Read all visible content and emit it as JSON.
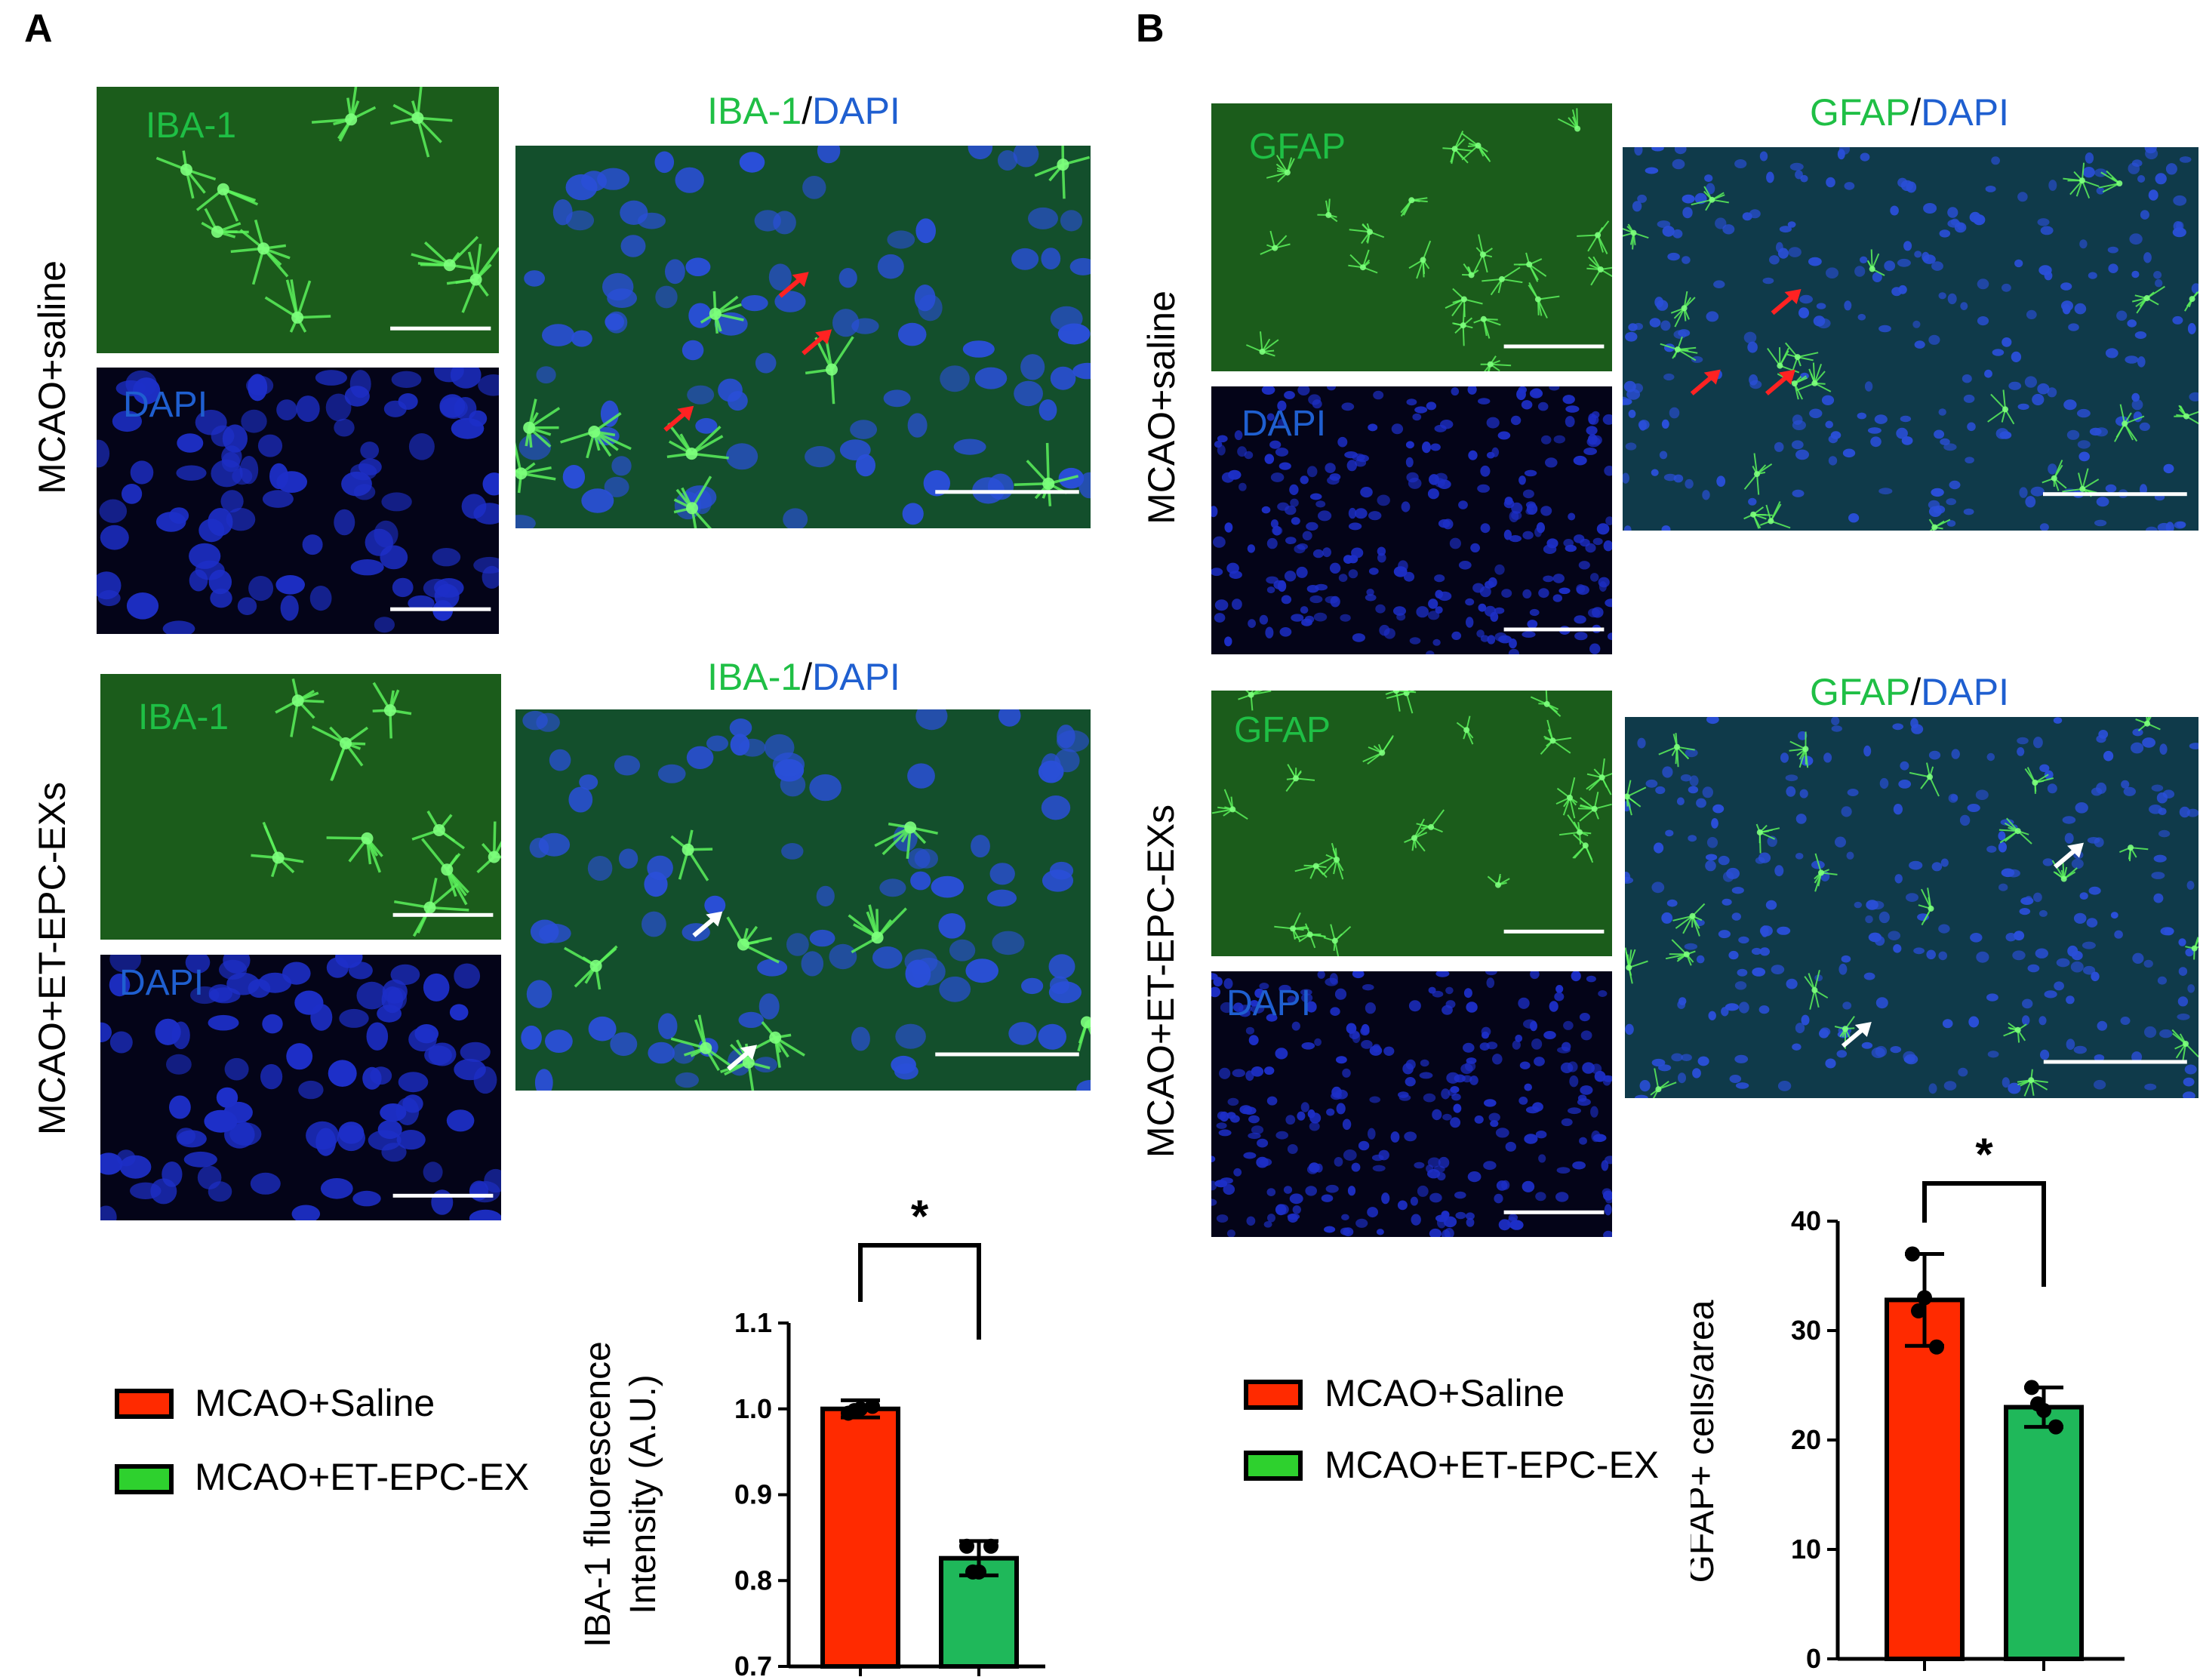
{
  "panels": {
    "A": {
      "letter": "A",
      "groups": [
        "MCAO+saline",
        "MCAO+ET-EPC-EXs"
      ],
      "stain_green": "IBA-1",
      "stain_blue": "DAPI",
      "merge_sep": "/",
      "legend": [
        "MCAO+Saline",
        "MCAO+ET-EPC-EX"
      ]
    },
    "B": {
      "letter": "B",
      "groups": [
        "MCAO+saline",
        "MCAO+ET-EPC-EXs"
      ],
      "stain_green": "GFAP",
      "stain_blue": "DAPI",
      "merge_sep": "/",
      "legend": [
        "MCAO+Saline",
        "MCAO+ET-EPC-EX"
      ]
    }
  },
  "colors": {
    "saline": "#ff2a00",
    "exosome": "#1fb85a",
    "legend_exosome": "#2ed12e",
    "green_text": "#1fbf45",
    "blue_text": "#1f5fd0"
  },
  "chart_data": [
    {
      "type": "bar",
      "categories": [
        "MCAO+Saline",
        "MCAO+ET-EPC-EX"
      ],
      "values": [
        1.0,
        0.826
      ],
      "errors": [
        0.01,
        0.02
      ],
      "points": [
        [
          0.995,
          1.0,
          1.003,
          0.998
        ],
        [
          0.84,
          0.81,
          0.84,
          0.81
        ]
      ],
      "ylabel_lines": [
        "IBA-1 fluorescence",
        "Intensity (A.U.)"
      ],
      "ylim": [
        0.7,
        1.1
      ],
      "yticks": [
        "0.7",
        "0.8",
        "0.9",
        "1.0",
        "1.1"
      ],
      "significance": "*"
    },
    {
      "type": "bar",
      "categories": [
        "MCAO+Saline",
        "MCAO+ET-EPC-EX"
      ],
      "values": [
        32.8,
        23.0
      ],
      "errors": [
        4.2,
        1.8
      ],
      "points": [
        [
          37,
          33,
          28.5,
          31.8
        ],
        [
          24.8,
          22.7,
          21.2,
          23.3
        ]
      ],
      "ylabel_lines": [
        "GFAP+ cells/area"
      ],
      "ylim": [
        0,
        40
      ],
      "yticks": [
        "0",
        "10",
        "20",
        "30",
        "40"
      ],
      "significance": "*"
    }
  ]
}
